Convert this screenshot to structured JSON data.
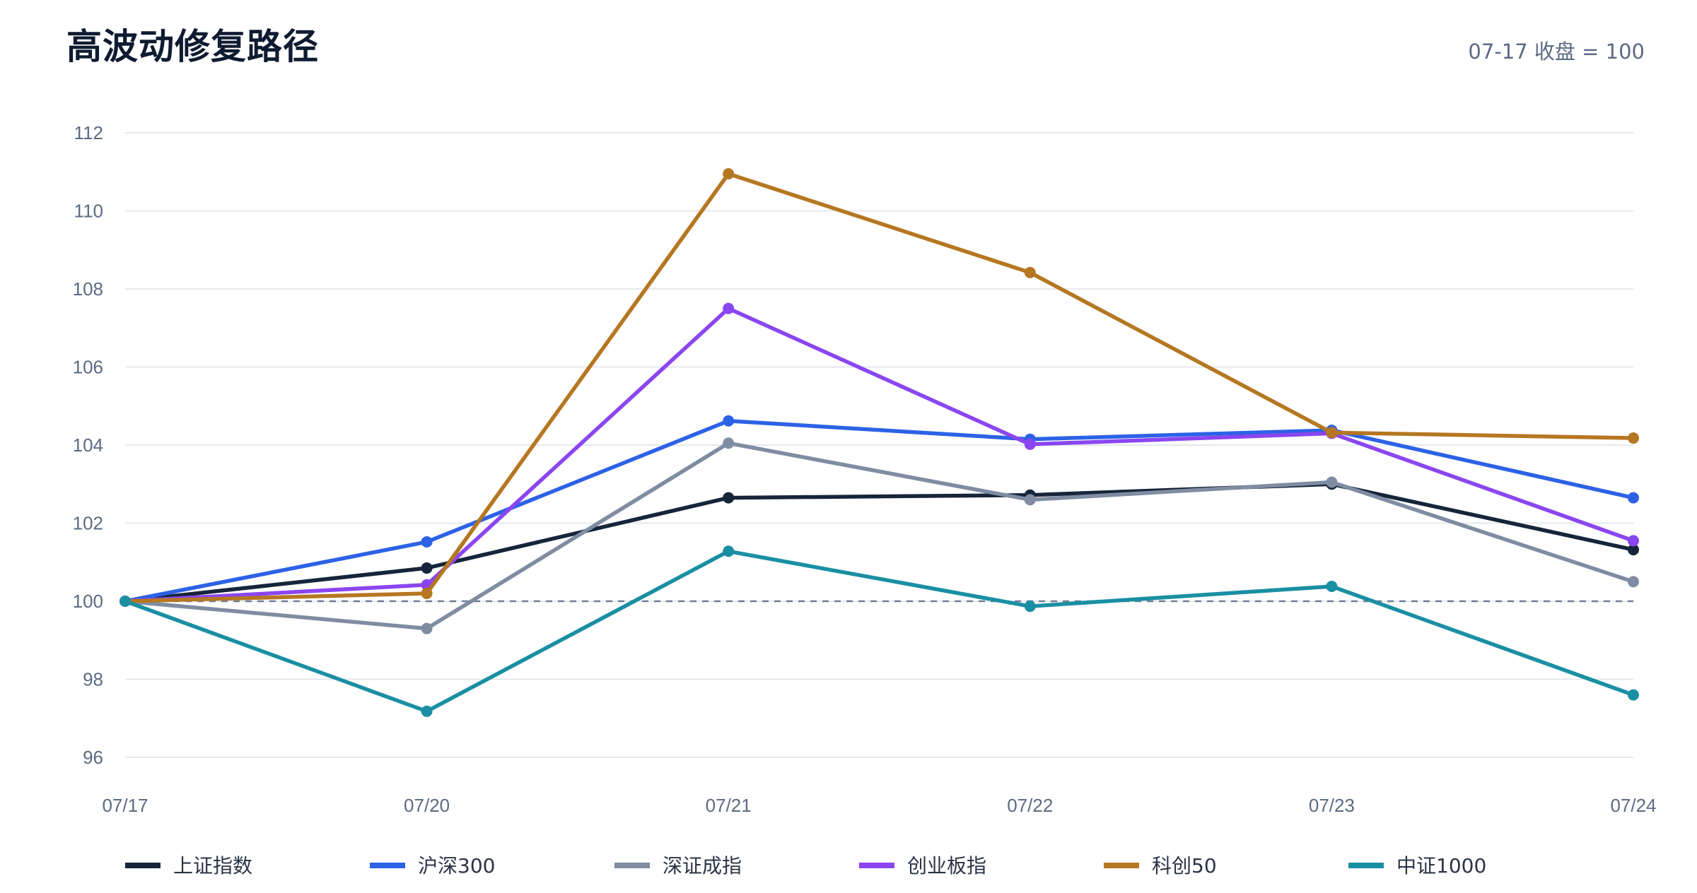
{
  "chart_data": {
    "type": "line",
    "title": "高波动修复路径",
    "note": "07-17 收盘 = 100",
    "categories": [
      "07/17",
      "07/20",
      "07/21",
      "07/22",
      "07/23",
      "07/24"
    ],
    "ylim": [
      96,
      112
    ],
    "yticks": [
      96,
      98,
      100,
      102,
      104,
      106,
      108,
      110,
      112
    ],
    "reference_line": 100,
    "grid": true,
    "legend_position": "bottom",
    "series": [
      {
        "name": "上证指数",
        "color": "#16253a",
        "values": [
          100.0,
          100.85,
          102.65,
          102.72,
          103.0,
          101.32
        ]
      },
      {
        "name": "沪深300",
        "color": "#2c62e6",
        "values": [
          100.0,
          101.52,
          104.62,
          104.15,
          104.38,
          102.65
        ]
      },
      {
        "name": "深证成指",
        "color": "#7f8ca1",
        "values": [
          100.0,
          99.3,
          104.05,
          102.6,
          103.05,
          100.5
        ]
      },
      {
        "name": "创业板指",
        "color": "#8a46f0",
        "values": [
          100.0,
          100.42,
          107.5,
          104.02,
          104.3,
          101.55
        ]
      },
      {
        "name": "科创50",
        "color": "#b57721",
        "values": [
          100.0,
          100.2,
          110.95,
          108.42,
          104.32,
          104.18
        ]
      },
      {
        "name": "中证1000",
        "color": "#1a8fa3",
        "values": [
          100.0,
          97.18,
          101.28,
          99.87,
          100.38,
          97.6
        ]
      }
    ]
  }
}
